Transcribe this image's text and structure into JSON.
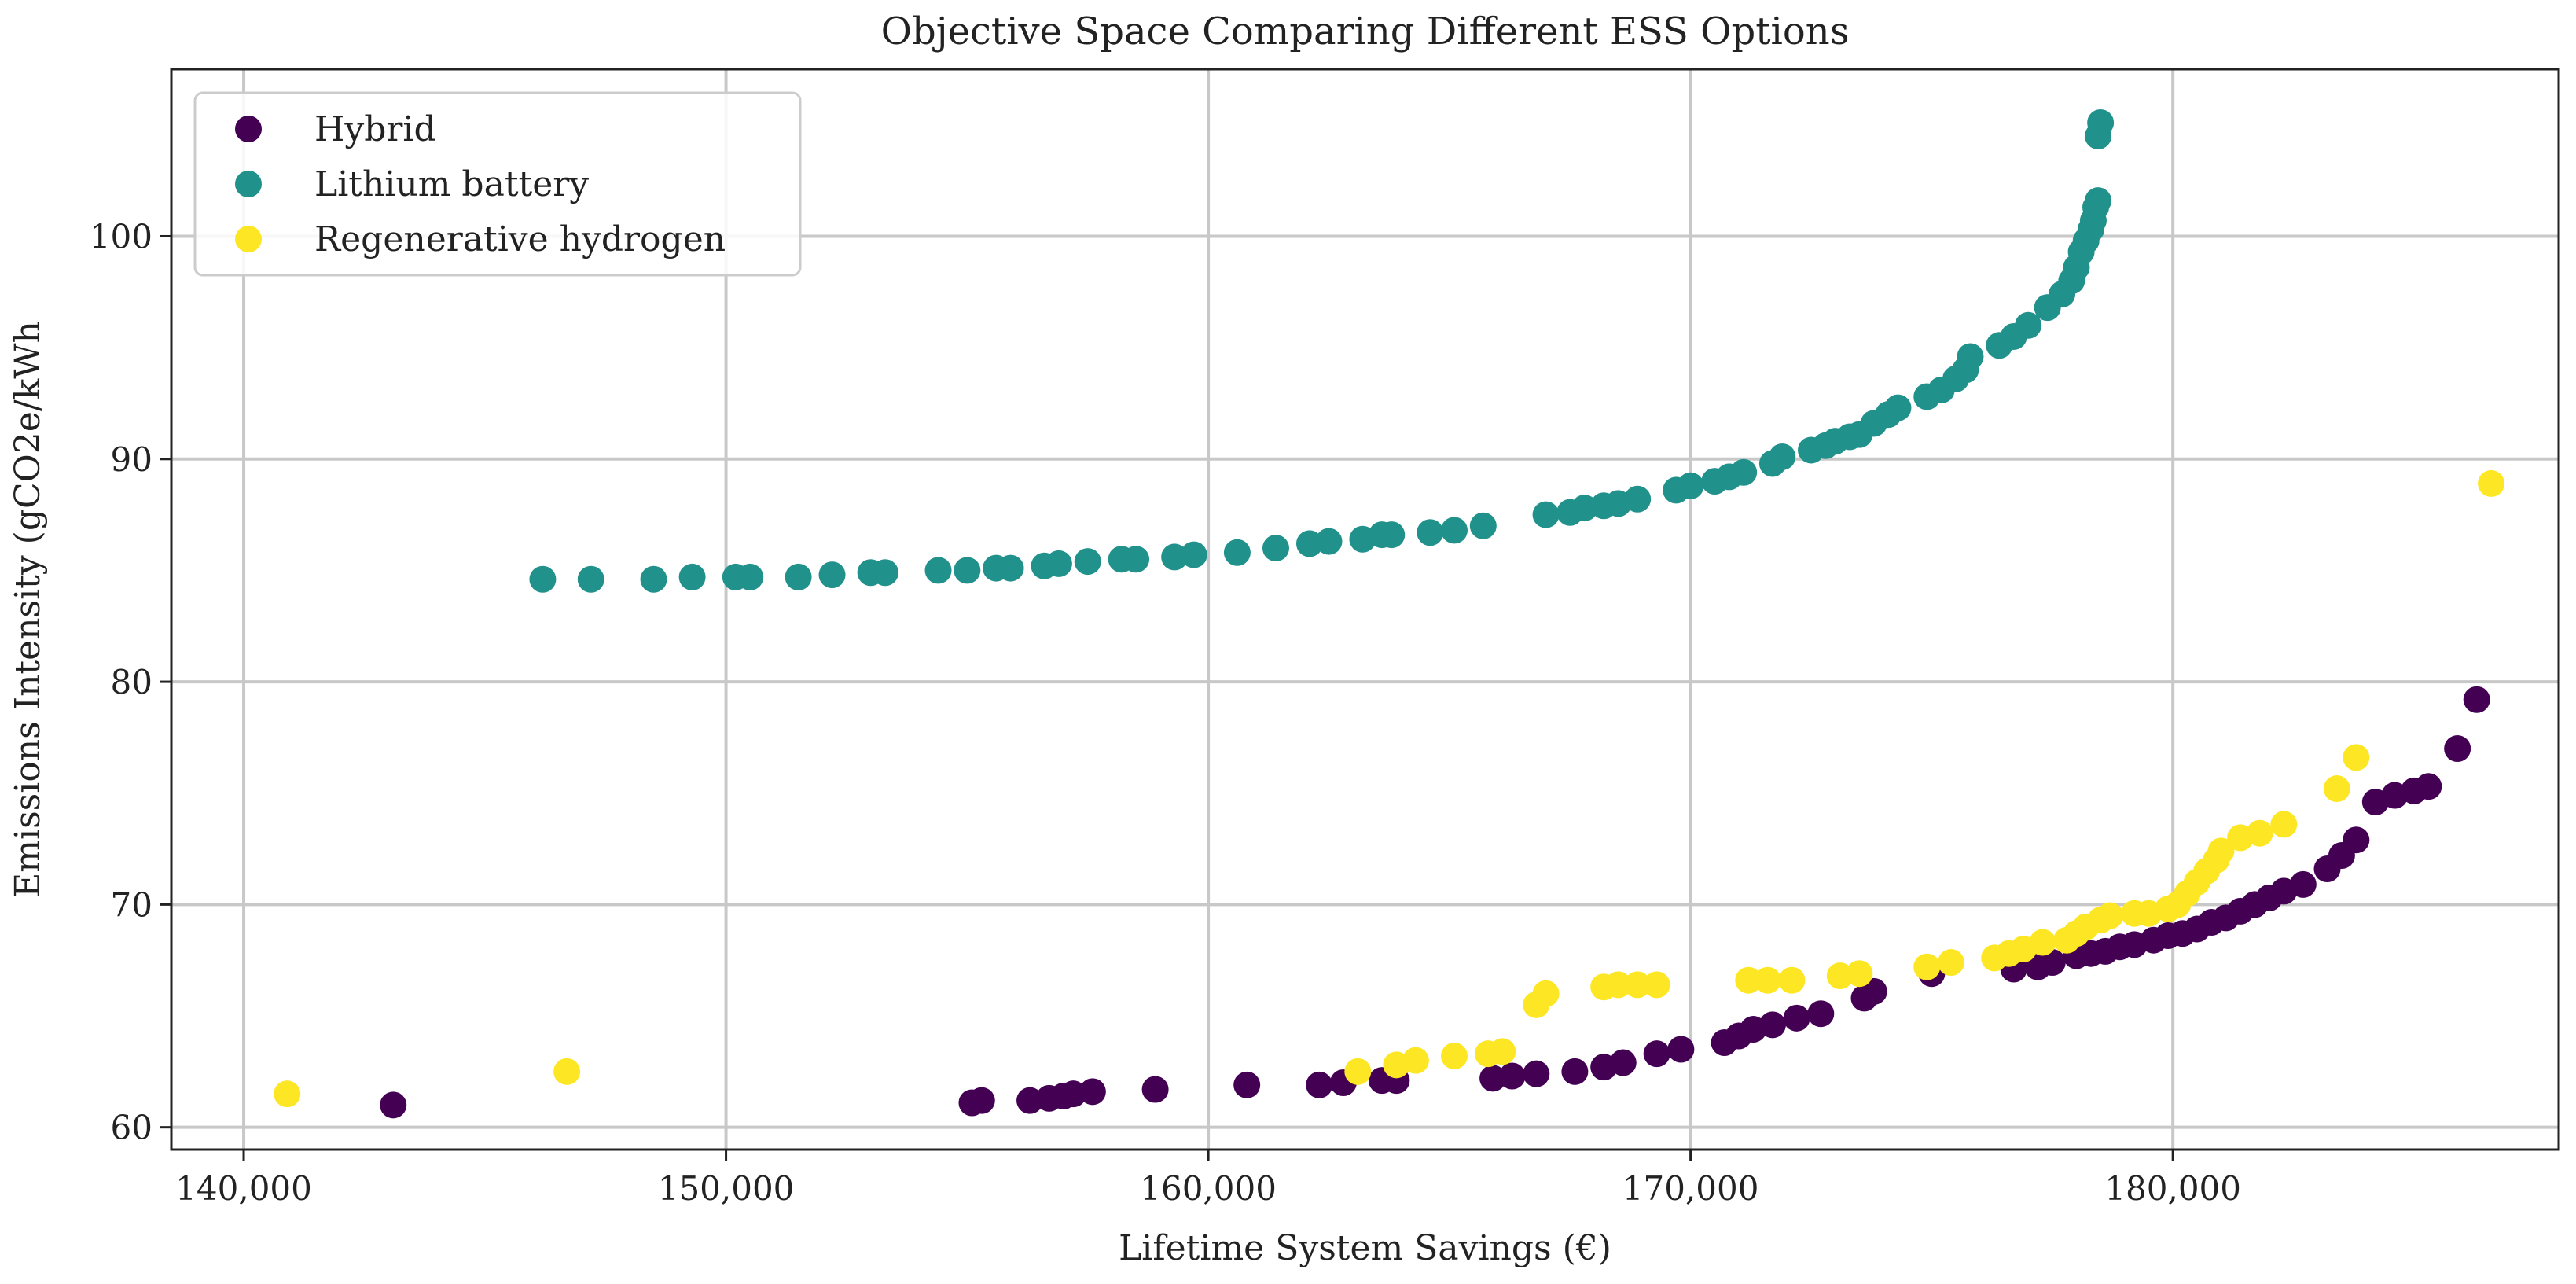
{
  "chart_data": {
    "type": "scatter",
    "title": "Objective Space Comparing Different ESS Options",
    "xlabel": "Lifetime System Savings (€)",
    "ylabel": "Emissions Intensity (gCO2e/kWh",
    "xlim": [
      138500,
      188000
    ],
    "ylim": [
      59,
      107.5
    ],
    "xticks": [
      140000,
      150000,
      160000,
      170000,
      180000
    ],
    "xtick_labels": [
      "140,000",
      "150,000",
      "160,000",
      "170,000",
      "180,000"
    ],
    "yticks": [
      60,
      70,
      80,
      90,
      100
    ],
    "ytick_labels": [
      "60",
      "70",
      "80",
      "90",
      "100"
    ],
    "grid": true,
    "legend_position": "top-left",
    "series": [
      {
        "name": "Hybrid",
        "color": "#440154",
        "points": [
          [
            143100,
            61.0
          ],
          [
            155100,
            61.1
          ],
          [
            155300,
            61.2
          ],
          [
            156300,
            61.2
          ],
          [
            156700,
            61.3
          ],
          [
            157000,
            61.4
          ],
          [
            157200,
            61.5
          ],
          [
            157600,
            61.6
          ],
          [
            158900,
            61.7
          ],
          [
            160800,
            61.9
          ],
          [
            162300,
            61.9
          ],
          [
            162800,
            62.0
          ],
          [
            163600,
            62.1
          ],
          [
            163900,
            62.1
          ],
          [
            165900,
            62.2
          ],
          [
            166300,
            62.3
          ],
          [
            166800,
            62.4
          ],
          [
            167600,
            62.5
          ],
          [
            168200,
            62.7
          ],
          [
            168600,
            62.9
          ],
          [
            169300,
            63.3
          ],
          [
            169800,
            63.5
          ],
          [
            170700,
            63.8
          ],
          [
            171000,
            64.1
          ],
          [
            171300,
            64.4
          ],
          [
            171700,
            64.6
          ],
          [
            172200,
            64.9
          ],
          [
            172700,
            65.1
          ],
          [
            173600,
            65.8
          ],
          [
            173800,
            66.1
          ],
          [
            175000,
            66.9
          ],
          [
            176700,
            67.1
          ],
          [
            177200,
            67.2
          ],
          [
            177500,
            67.4
          ],
          [
            178000,
            67.7
          ],
          [
            178300,
            67.8
          ],
          [
            178600,
            67.9
          ],
          [
            178900,
            68.1
          ],
          [
            179200,
            68.2
          ],
          [
            179600,
            68.4
          ],
          [
            179900,
            68.6
          ],
          [
            180200,
            68.7
          ],
          [
            180500,
            68.9
          ],
          [
            180800,
            69.2
          ],
          [
            181100,
            69.4
          ],
          [
            181400,
            69.7
          ],
          [
            181700,
            70.0
          ],
          [
            182000,
            70.3
          ],
          [
            182300,
            70.6
          ],
          [
            182700,
            70.9
          ],
          [
            183200,
            71.6
          ],
          [
            183500,
            72.2
          ],
          [
            183800,
            72.9
          ],
          [
            184200,
            74.6
          ],
          [
            184600,
            74.9
          ],
          [
            185000,
            75.1
          ],
          [
            185300,
            75.3
          ],
          [
            185900,
            77.0
          ],
          [
            186300,
            79.2
          ]
        ]
      },
      {
        "name": "Lithium battery",
        "color": "#21918c",
        "points": [
          [
            146200,
            84.6
          ],
          [
            147200,
            84.6
          ],
          [
            148500,
            84.6
          ],
          [
            149300,
            84.7
          ],
          [
            150200,
            84.7
          ],
          [
            150500,
            84.7
          ],
          [
            151500,
            84.7
          ],
          [
            152200,
            84.8
          ],
          [
            153000,
            84.9
          ],
          [
            153300,
            84.9
          ],
          [
            154400,
            85.0
          ],
          [
            155000,
            85.0
          ],
          [
            155600,
            85.1
          ],
          [
            155900,
            85.1
          ],
          [
            156600,
            85.2
          ],
          [
            156900,
            85.3
          ],
          [
            157500,
            85.4
          ],
          [
            158200,
            85.5
          ],
          [
            158500,
            85.5
          ],
          [
            159300,
            85.6
          ],
          [
            159700,
            85.7
          ],
          [
            160600,
            85.8
          ],
          [
            161400,
            86.0
          ],
          [
            162100,
            86.2
          ],
          [
            162500,
            86.3
          ],
          [
            163200,
            86.4
          ],
          [
            163600,
            86.6
          ],
          [
            163800,
            86.6
          ],
          [
            164600,
            86.7
          ],
          [
            165100,
            86.8
          ],
          [
            165700,
            87.0
          ],
          [
            167000,
            87.5
          ],
          [
            167500,
            87.6
          ],
          [
            167800,
            87.8
          ],
          [
            168200,
            87.9
          ],
          [
            168500,
            88.0
          ],
          [
            168900,
            88.2
          ],
          [
            169700,
            88.6
          ],
          [
            170000,
            88.8
          ],
          [
            170500,
            89.0
          ],
          [
            170800,
            89.2
          ],
          [
            171100,
            89.4
          ],
          [
            171700,
            89.8
          ],
          [
            171900,
            90.1
          ],
          [
            172500,
            90.4
          ],
          [
            172800,
            90.6
          ],
          [
            173000,
            90.8
          ],
          [
            173300,
            91.0
          ],
          [
            173500,
            91.1
          ],
          [
            173800,
            91.6
          ],
          [
            174100,
            92.0
          ],
          [
            174300,
            92.3
          ],
          [
            174900,
            92.8
          ],
          [
            175200,
            93.1
          ],
          [
            175500,
            93.6
          ],
          [
            175700,
            94.0
          ],
          [
            175800,
            94.6
          ],
          [
            176400,
            95.1
          ],
          [
            176700,
            95.5
          ],
          [
            177000,
            96.0
          ],
          [
            177400,
            96.8
          ],
          [
            177700,
            97.4
          ],
          [
            177900,
            98.0
          ],
          [
            178000,
            98.6
          ],
          [
            178100,
            99.3
          ],
          [
            178200,
            99.8
          ],
          [
            178300,
            100.3
          ],
          [
            178350,
            100.7
          ],
          [
            178400,
            101.3
          ],
          [
            178450,
            101.6
          ],
          [
            178450,
            104.5
          ],
          [
            178500,
            105.1
          ]
        ]
      },
      {
        "name": "Regenerative hydrogen",
        "color": "#fde725",
        "points": [
          [
            140900,
            61.5
          ],
          [
            146700,
            62.5
          ],
          [
            163100,
            62.5
          ],
          [
            163900,
            62.8
          ],
          [
            164300,
            63.0
          ],
          [
            165100,
            63.2
          ],
          [
            165800,
            63.3
          ],
          [
            166100,
            63.4
          ],
          [
            166800,
            65.5
          ],
          [
            167000,
            66.0
          ],
          [
            168200,
            66.3
          ],
          [
            168500,
            66.4
          ],
          [
            168900,
            66.4
          ],
          [
            169300,
            66.4
          ],
          [
            171200,
            66.6
          ],
          [
            171600,
            66.6
          ],
          [
            172100,
            66.6
          ],
          [
            173100,
            66.8
          ],
          [
            173500,
            66.9
          ],
          [
            174900,
            67.2
          ],
          [
            175400,
            67.4
          ],
          [
            176300,
            67.6
          ],
          [
            176600,
            67.8
          ],
          [
            176900,
            68.0
          ],
          [
            177300,
            68.3
          ],
          [
            177800,
            68.4
          ],
          [
            178000,
            68.7
          ],
          [
            178200,
            69.0
          ],
          [
            178500,
            69.3
          ],
          [
            178700,
            69.5
          ],
          [
            179200,
            69.6
          ],
          [
            179500,
            69.6
          ],
          [
            179900,
            69.8
          ],
          [
            180100,
            70.0
          ],
          [
            180300,
            70.5
          ],
          [
            180500,
            71.0
          ],
          [
            180700,
            71.5
          ],
          [
            180900,
            72.0
          ],
          [
            181000,
            72.4
          ],
          [
            181400,
            73.0
          ],
          [
            181800,
            73.2
          ],
          [
            182300,
            73.6
          ],
          [
            183400,
            75.2
          ],
          [
            183800,
            76.6
          ],
          [
            186600,
            88.9
          ]
        ]
      }
    ]
  }
}
